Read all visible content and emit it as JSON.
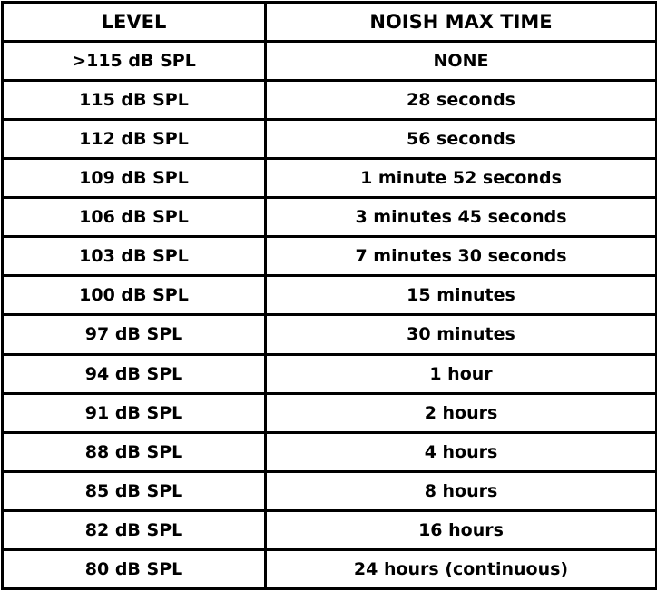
{
  "table": {
    "headers": {
      "level": "LEVEL",
      "max_time": "NOISH MAX TIME"
    },
    "rows": [
      {
        "level": ">115 dB SPL",
        "max_time": "NONE"
      },
      {
        "level": "115 dB SPL",
        "max_time": "28 seconds"
      },
      {
        "level": "112 dB SPL",
        "max_time": "56 seconds"
      },
      {
        "level": "109 dB SPL",
        "max_time": "1 minute 52 seconds"
      },
      {
        "level": "106 dB SPL",
        "max_time": "3 minutes 45 seconds"
      },
      {
        "level": "103 dB SPL",
        "max_time": "7 minutes 30 seconds"
      },
      {
        "level": "100 dB SPL",
        "max_time": "15 minutes"
      },
      {
        "level": "97 dB SPL",
        "max_time": "30 minutes"
      },
      {
        "level": "94 dB SPL",
        "max_time": "1 hour"
      },
      {
        "level": "91 dB SPL",
        "max_time": "2 hours"
      },
      {
        "level": "88 dB SPL",
        "max_time": "4 hours"
      },
      {
        "level": "85 dB SPL",
        "max_time": "8 hours"
      },
      {
        "level": "82 dB SPL",
        "max_time": "16 hours"
      },
      {
        "level": "80 dB SPL",
        "max_time": "24 hours (continuous)"
      }
    ]
  },
  "colors": {
    "background": "#ffffff",
    "text": "#000000",
    "border": "#000000"
  }
}
